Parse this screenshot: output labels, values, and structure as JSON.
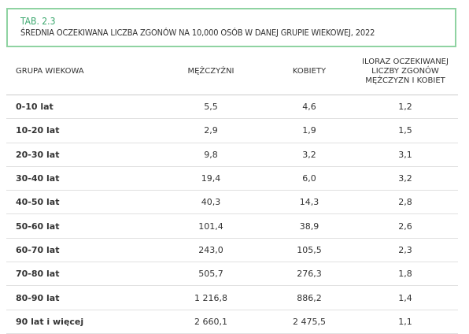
{
  "header": {
    "label": "TAB. 2.3",
    "title": "ŚREDNIA OCZEKIWANA LICZBA ZGONÓW NA 10,000 OSÓB W DANEJ GRUPIE WIEKOWEJ, 2022"
  },
  "table": {
    "columns": [
      "GRUPA WIEKOWA",
      "MĘŻCZYŹNI",
      "KOBIETY",
      "ILORAZ OCZEKIWANEJ LICZBY ZGONÓW MĘŻCZYZN I KOBIET"
    ],
    "rows": [
      [
        "0-10 lat",
        "5,5",
        "4,6",
        "1,2"
      ],
      [
        "10-20 lat",
        "2,9",
        "1,9",
        "1,5"
      ],
      [
        "20-30 lat",
        "9,8",
        "3,2",
        "3,1"
      ],
      [
        "30-40 lat",
        "19,4",
        "6,0",
        "3,2"
      ],
      [
        "40-50 lat",
        "40,3",
        "14,3",
        "2,8"
      ],
      [
        "50-60 lat",
        "101,4",
        "38,9",
        "2,6"
      ],
      [
        "60-70 lat",
        "243,0",
        "105,5",
        "2,3"
      ],
      [
        "70-80 lat",
        "505,7",
        "276,3",
        "1,8"
      ],
      [
        "80-90 lat",
        "1 216,8",
        "886,2",
        "1,4"
      ],
      [
        "90 lat i więcej",
        "2 660,1",
        "2 475,5",
        "1,1"
      ]
    ]
  }
}
